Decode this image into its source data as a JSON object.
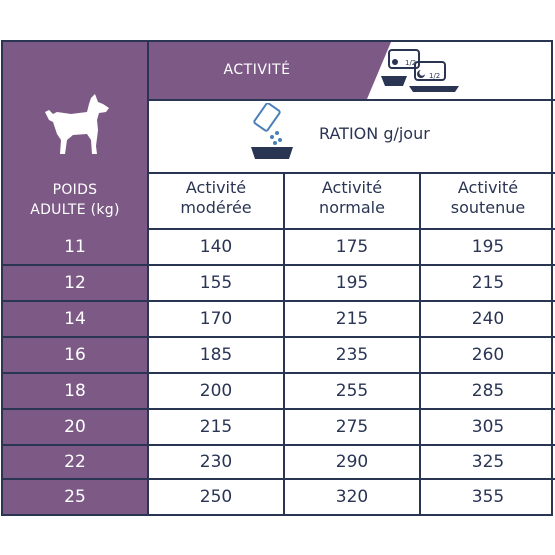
{
  "header": {
    "activity_label": "ACTIVITÉ",
    "sun_fraction": "1/2",
    "moon_fraction": "1/2",
    "ration_label": "RATION g/jour"
  },
  "weight_header": {
    "line1": "POIDS",
    "line2": "ADULTE (kg)"
  },
  "columns": [
    {
      "line1": "Activité",
      "line2": "modérée"
    },
    {
      "line1": "Activité",
      "line2": "normale"
    },
    {
      "line1": "Activité",
      "line2": "soutenue"
    }
  ],
  "rows": [
    {
      "weight": "11",
      "values": [
        "140",
        "175",
        "195"
      ]
    },
    {
      "weight": "12",
      "values": [
        "155",
        "195",
        "215"
      ]
    },
    {
      "weight": "14",
      "values": [
        "170",
        "215",
        "240"
      ]
    },
    {
      "weight": "16",
      "values": [
        "185",
        "235",
        "260"
      ]
    },
    {
      "weight": "18",
      "values": [
        "200",
        "255",
        "285"
      ]
    },
    {
      "weight": "20",
      "values": [
        "215",
        "275",
        "305"
      ]
    },
    {
      "weight": "22",
      "values": [
        "230",
        "290",
        "325"
      ]
    },
    {
      "weight": "25",
      "values": [
        "250",
        "320",
        "355"
      ]
    }
  ],
  "icons": [
    "dog-icon",
    "sun-moon-bowl-icon",
    "food-bag-bowl-icon"
  ],
  "colors": {
    "purple": "#7d5a86",
    "navy": "#2a3554",
    "white": "#ffffff"
  }
}
